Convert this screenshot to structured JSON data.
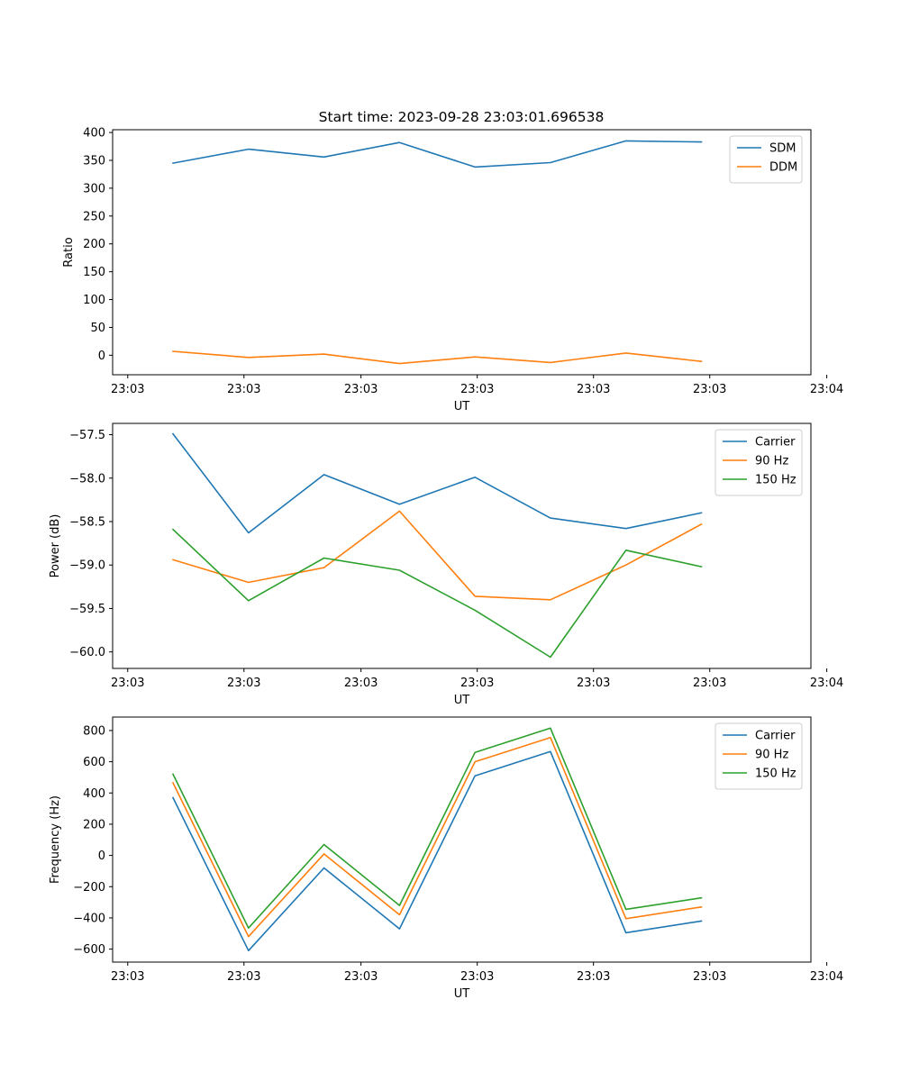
{
  "figure": {
    "suptitle": "Start time: 2023-09-28 23:03:01.696538"
  },
  "colors": {
    "blue": "#1f77b4",
    "orange": "#ff7f0e",
    "green": "#2ca02c"
  },
  "chart_data": [
    {
      "type": "line",
      "title": "Start time: 2023-09-28 23:03:01.696538",
      "xlabel": "UT",
      "ylabel": "Ratio",
      "x": [
        1,
        2,
        3,
        4,
        5,
        6,
        7,
        8
      ],
      "xlim": [
        0.2,
        9.45
      ],
      "xticks": [
        0.4,
        1.94,
        3.49,
        5.03,
        6.57,
        8.11,
        9.66
      ],
      "xticklabels": [
        "23:03",
        "23:03",
        "23:03",
        "23:03",
        "23:03",
        "23:03",
        "23:04"
      ],
      "ylim": [
        -35,
        405
      ],
      "yticks": [
        0,
        50,
        100,
        150,
        200,
        250,
        300,
        350,
        400
      ],
      "yticklabels": [
        "0",
        "50",
        "100",
        "150",
        "200",
        "250",
        "300",
        "350",
        "400"
      ],
      "legend": "top-right",
      "series": [
        {
          "name": "SDM",
          "color": "blue",
          "values": [
            345,
            370,
            356,
            382,
            338,
            346,
            385,
            383
          ]
        },
        {
          "name": "DDM",
          "color": "orange",
          "values": [
            7,
            -4,
            2,
            -15,
            -3,
            -13,
            4,
            -11
          ]
        }
      ]
    },
    {
      "type": "line",
      "title": "",
      "xlabel": "UT",
      "ylabel": "Power (dB)",
      "x": [
        1,
        2,
        3,
        4,
        5,
        6,
        7,
        8
      ],
      "xlim": [
        0.2,
        9.45
      ],
      "xticks": [
        0.4,
        1.94,
        3.49,
        5.03,
        6.57,
        8.11,
        9.66
      ],
      "xticklabels": [
        "23:03",
        "23:03",
        "23:03",
        "23:03",
        "23:03",
        "23:03",
        "23:04"
      ],
      "ylim": [
        -60.19,
        -57.37
      ],
      "yticks": [
        -60.0,
        -59.5,
        -59.0,
        -58.5,
        -58.0,
        -57.5
      ],
      "yticklabels": [
        "−60.0",
        "−59.5",
        "−59.0",
        "−58.5",
        "−58.0",
        "−57.5"
      ],
      "legend": "top-right",
      "series": [
        {
          "name": "Carrier",
          "color": "blue",
          "values": [
            -57.49,
            -58.63,
            -57.96,
            -58.3,
            -57.99,
            -58.46,
            -58.58,
            -58.4
          ]
        },
        {
          "name": "90 Hz",
          "color": "orange",
          "values": [
            -58.94,
            -59.2,
            -59.03,
            -58.38,
            -59.36,
            -59.4,
            -59.0,
            -58.53
          ]
        },
        {
          "name": "150 Hz",
          "color": "green",
          "values": [
            -58.59,
            -59.41,
            -58.92,
            -59.06,
            -59.52,
            -60.06,
            -58.83,
            -59.02
          ]
        }
      ]
    },
    {
      "type": "line",
      "title": "",
      "xlabel": "UT",
      "ylabel": "Frequency (Hz)",
      "x": [
        1,
        2,
        3,
        4,
        5,
        6,
        7,
        8
      ],
      "xlim": [
        0.2,
        9.45
      ],
      "xticks": [
        0.4,
        1.94,
        3.49,
        5.03,
        6.57,
        8.11,
        9.66
      ],
      "xticklabels": [
        "23:03",
        "23:03",
        "23:03",
        "23:03",
        "23:03",
        "23:03",
        "23:04"
      ],
      "ylim": [
        -683,
        886
      ],
      "yticks": [
        -600,
        -400,
        -200,
        0,
        200,
        400,
        600,
        800
      ],
      "yticklabels": [
        "−600",
        "−400",
        "−200",
        "0",
        "200",
        "400",
        "600",
        "800"
      ],
      "legend": "top-right",
      "series": [
        {
          "name": "Carrier",
          "color": "blue",
          "values": [
            370,
            -610,
            -80,
            -470,
            510,
            665,
            -495,
            -420
          ]
        },
        {
          "name": "90 Hz",
          "color": "orange",
          "values": [
            465,
            -520,
            10,
            -380,
            600,
            755,
            -405,
            -330
          ]
        },
        {
          "name": "150 Hz",
          "color": "green",
          "values": [
            520,
            -465,
            70,
            -320,
            660,
            815,
            -345,
            -272
          ]
        }
      ]
    }
  ]
}
